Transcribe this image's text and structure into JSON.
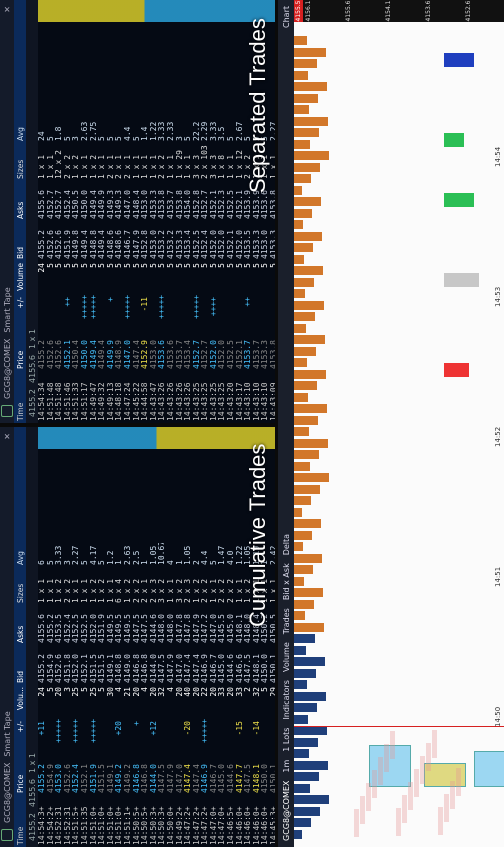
{
  "symbol": "GCG8@COMEX",
  "panel_title": "Smart Tape",
  "captions": {
    "cumulative": "Cumulative Trades",
    "separated": "Separated Trades"
  },
  "columns_cum": [
    "Time",
    "Price",
    "+/-",
    "Volu...",
    "Bid",
    "Asks",
    "Sizes",
    "Avg"
  ],
  "columns_sep": [
    "Time",
    "Price",
    "+/-",
    "Volume",
    "Bid",
    "Asks",
    "Sizes",
    "Avg"
  ],
  "header_quote_cum": {
    "bid": "4155.2",
    "ask": "4155.6",
    "sizes": "1 x 1"
  },
  "header_quote_sep": {
    "bid": "4155.2",
    "ask": "4155.6",
    "sizes": "1 x 1"
  },
  "cum_rows": [
    [
      "14:54:3+",
      "4155.2",
      "+11",
      "24",
      "4155.2",
      "4155.6",
      "1 x 1",
      "6"
    ],
    [
      "14:54:2+",
      "4154.9",
      "",
      "5",
      "4154.9",
      "4155.2",
      "1 x 1",
      "5"
    ],
    [
      "14:52:31",
      "4153.0",
      "++++++",
      "20",
      "4152.6",
      "4153.5",
      "1 x 2",
      "3.33"
    ],
    [
      "14:52:31",
      "4152.6",
      "",
      "3",
      "4151.8",
      "4152.4",
      "2 x 2",
      "3"
    ],
    [
      "14:51:5+",
      "4152.4",
      "++++++",
      "25",
      "4152.0",
      "4152.5",
      "1 x 1",
      "2.27"
    ],
    [
      "14:51:35",
      "4152.1",
      "",
      "5",
      "4152.1",
      "4152.5",
      "1 x 1",
      "5"
    ],
    [
      "14:51:0+",
      "4151.9",
      "++++++",
      "25",
      "4151.5",
      "4152.0",
      "1 x 2",
      "4.17"
    ],
    [
      "14:51:0+",
      "4151.5",
      "",
      "5",
      "4151.5",
      "4151.9",
      "1 x 2",
      "5"
    ],
    [
      "14:51:0+",
      "4149.1",
      "",
      "30",
      "4149.1",
      "4149.5",
      "1 x 1",
      "1.2"
    ],
    [
      "14:51:0+",
      "4149.2",
      "+20",
      "4",
      "4148.8",
      "4149.5",
      "6 x 4",
      "1"
    ],
    [
      "14:51:1+",
      "4149.2",
      "",
      "21",
      "4149.0",
      "4149.5",
      "1 x 2",
      "2.63"
    ],
    [
      "14:50:5+",
      "4146.8",
      "+",
      "20",
      "4146.8",
      "4147.5",
      "2 x 2",
      "2.5"
    ],
    [
      "14:50:5+",
      "4146.8",
      "",
      "4",
      "4146.8",
      "4147.5",
      "2 x 1",
      "1"
    ],
    [
      "14:50:3+",
      "4144.0",
      "+12",
      "20",
      "4144.0",
      "4144.6",
      "2 x 3",
      "1.05"
    ],
    [
      "14:50:3+",
      "4147.5",
      "",
      "32",
      "4147.5",
      "4148.0",
      "3 x 2",
      "10.67"
    ],
    [
      "14:50:0+",
      "4147.9",
      "",
      "4",
      "4147.9",
      "4148.0",
      "1 x 1",
      "4"
    ],
    [
      "14:49:2+",
      "4147.0",
      "",
      "20",
      "4147.0",
      "4147.8",
      "3 x 2",
      "1"
    ],
    [
      "14:47:2+",
      "4147.4",
      "-20",
      "40",
      "4147.4",
      "4147.8",
      "2 x 3",
      "1.05"
    ],
    [
      "14:47:2+",
      "4147.4",
      "",
      "20",
      "4147.4",
      "4147.9",
      "1 x 2",
      "2"
    ],
    [
      "14:47:2+",
      "4146.9",
      "++++++",
      "22",
      "4146.9",
      "4147.2",
      "2 x 2",
      "4.4"
    ],
    [
      "14:47:0+",
      "4146.7",
      "",
      "20",
      "4146.7",
      "4147.0",
      "1 x 1",
      "5"
    ],
    [
      "14:47:0+",
      "4145.0",
      "",
      "33",
      "4145.0",
      "4145.5",
      "2 x 2",
      "1.47"
    ],
    [
      "14:46:5+",
      "4144.6",
      "",
      "20",
      "4144.6",
      "4145.0",
      "2 x 2",
      "4.0"
    ],
    [
      "14:46:0+",
      "4147.7",
      "-15",
      "33",
      "4146.6",
      "4148.1",
      "1 x 1",
      "1.22"
    ],
    [
      "14:46:0+",
      "4147.5",
      "",
      "2",
      "4147.5",
      "4148.0",
      "1 x 2",
      "1.05"
    ],
    [
      "14:46:0+",
      "4148.1",
      "-14",
      "32",
      "4148.1",
      "4148.4",
      "1 x 1",
      "1.19"
    ],
    [
      "14:46:0+",
      "4150.0",
      "",
      "5",
      "4150.0",
      "4150.2",
      "1 x 1",
      "1"
    ],
    [
      "14:45:3+",
      "4150.1",
      "",
      "29",
      "4150.1",
      "4150.5",
      "1 x 1",
      "2.42"
    ],
    [
      "14:45:3+",
      "4149.4",
      "",
      "5",
      "4149.4",
      "4150.1",
      "1 x 1",
      "1"
    ],
    [
      "14:19:1+",
      "4173.4",
      "++",
      "22",
      "4173.2",
      "4173.4",
      "2 x 1",
      "11"
    ],
    [
      "14:19:1+",
      "4173.2",
      "",
      "22",
      "4173.2",
      "4173.5",
      "2 x 2",
      "1.27"
    ],
    [
      "14:10:5+",
      "4175.9",
      "+12",
      "42",
      "4175.6",
      "4177.0",
      "1 x 2",
      "1.27"
    ],
    [
      "14:10:5+",
      "4175.6",
      "",
      "10",
      "4175.6",
      "4176.3",
      "1 x 1",
      "2"
    ]
  ],
  "sep_rows": [
    [
      "14:54:34",
      "4155.2",
      "",
      "24",
      "4155.2",
      "4155.6",
      "1 x 1",
      "24"
    ],
    [
      "14:51:48",
      "4152.6",
      "",
      "5",
      "4152.6",
      "4152.7",
      "1 x 1",
      "5"
    ],
    [
      "14:51:48",
      "4152.6",
      "",
      "5",
      "4152.6",
      "4152.7",
      "12 x 2",
      "1.8"
    ],
    [
      "14:51:46",
      "4152.1",
      "++",
      "5",
      "4151.9",
      "4152.4",
      "2 x 2",
      "5"
    ],
    [
      "14:51:33",
      "4150.4",
      "",
      "5",
      "4149.8",
      "4150.5",
      "1 x 2",
      "3"
    ],
    [
      "14:51:17",
      "4150.0",
      "++++++",
      "5",
      "4149.4",
      "4150.0",
      "1 x 1",
      "2.63"
    ],
    [
      "14:49:47",
      "4149.4",
      "++++++",
      "5",
      "4148.8",
      "4149.4",
      "1 x 2",
      "2.75"
    ],
    [
      "14:49:32",
      "4149.4",
      "",
      "5",
      "4149.4",
      "4149.9",
      "1 x 1",
      "5"
    ],
    [
      "14:49:13",
      "4149.9",
      "+",
      "5",
      "4148.6",
      "4149.3",
      "2 x 1",
      "5"
    ],
    [
      "14:48:18",
      "4148.9",
      "",
      "5",
      "4148.6",
      "4149.3",
      "2 x 1",
      "5"
    ],
    [
      "14:47:24",
      "4147.0",
      "++++++",
      "5",
      "4146.7",
      "4147.0",
      "2 x 1",
      "4.4"
    ],
    [
      "14:45:22",
      "4147.4",
      "",
      "5",
      "4147.9",
      "4148.4",
      "1 x 1",
      "5"
    ],
    [
      "14:44:58",
      "4152.9",
      "-11",
      "5",
      "4152.8",
      "4153.0",
      "1 x 1",
      "1.4"
    ],
    [
      "14:43:47",
      "4153.0",
      "",
      "5",
      "4153.0",
      "4153.3",
      "1 x 1",
      "1.22"
    ],
    [
      "14:43:26",
      "4153.6",
      "+++++",
      "5",
      "4153.2",
      "4153.8",
      "2 x 2",
      "3.33"
    ],
    [
      "14:43:26",
      "4153.6",
      "",
      "5",
      "4153.2",
      "4153.7",
      "1 x 1",
      "2.33"
    ],
    [
      "14:43:26",
      "4153.7",
      "",
      "5",
      "4153.3",
      "4153.8",
      "1 x 29",
      "3"
    ],
    [
      "14:43:26",
      "4153.4",
      "",
      "5",
      "4153.4",
      "4154.0",
      "1 x 1",
      "5"
    ],
    [
      "14:43:25",
      "4152.7",
      "++++++",
      "5",
      "4152.5",
      "4152.8",
      "3 x 3",
      "22.2"
    ],
    [
      "14:43:25",
      "4152.7",
      "",
      "5",
      "4152.4",
      "4152.7",
      "2 x 103",
      "2.29"
    ],
    [
      "14:43:25",
      "4152.0",
      "++++",
      "5",
      "4152.0",
      "4152.1",
      "3 x 3",
      "3.33"
    ],
    [
      "14:43:25",
      "4152.0",
      "",
      "5",
      "4152.0",
      "4152.3",
      "1 x 8",
      "3.5"
    ],
    [
      "14:43:20",
      "4152.5",
      "",
      "5",
      "4152.1",
      "4152.5",
      "1 x 1",
      "5"
    ],
    [
      "14:43:17",
      "4152.1",
      "",
      "5",
      "4152.0",
      "4152.1",
      "1 x 12",
      "2.67"
    ],
    [
      "14:43:10",
      "4153.7",
      "++",
      "5",
      "4153.5",
      "4153.9",
      "2 x 2",
      "5"
    ],
    [
      "14:43:10",
      "4153.7",
      "",
      "5",
      "4153.3",
      "4153.9",
      "1 x 1",
      "5"
    ],
    [
      "14:43:10",
      "4153.3",
      "",
      "5",
      "4153.0",
      "4153.6",
      "1 x 1",
      "5"
    ],
    [
      "14:43:09",
      "4153.8",
      "",
      "5",
      "4153.3",
      "4153.8",
      "1 x 1",
      "2.27"
    ],
    [
      "14:42:25",
      "4160.8",
      "-12",
      "5",
      "4160.7",
      "4161.3",
      "2 x 2",
      "4.5"
    ],
    [
      "14:42:25",
      "4160.8",
      "++++++",
      "5",
      "4160.7",
      "4161.3",
      "4 x 3",
      "3"
    ],
    [
      "14:39:41",
      "4155.0",
      "",
      "5",
      "4155.0",
      "4155.6",
      "1 x 1",
      "5"
    ],
    [
      "14:39:41",
      "4160.9",
      "",
      "5",
      "4160.9",
      "4161.3",
      "1 x 1",
      "3"
    ],
    [
      "14:38:39",
      "4160.6",
      "",
      "5",
      "4160.6",
      "4160.8",
      "2 x 1",
      "1.4"
    ],
    [
      "14:36:02",
      "4157.9",
      "-29",
      "5",
      "4160.6",
      "4160.8",
      "1 x 1",
      "1.11"
    ],
    [
      "14:34:32",
      "4163.9",
      "-21",
      "5",
      "4160.3",
      "4160.6",
      "1 x 3",
      "1.19"
    ],
    [
      "14:33:44",
      "4162.6",
      "",
      "5",
      "4166.4",
      "4166.8",
      "2 x 1",
      "1"
    ],
    [
      "14:32:43",
      "4168.5",
      "+11",
      "5",
      "4168.5",
      "4168.8",
      "1 x 1",
      "1.12"
    ],
    [
      "14:31",
      "4168.5",
      "",
      "5",
      "4168.5",
      "4168.8",
      "1 x 1",
      "5"
    ],
    [
      "14:29",
      "4168.5",
      "",
      "5",
      "4168.5",
      "4168.8",
      "1 x 1",
      "5"
    ]
  ],
  "chart": {
    "title": "Chart",
    "toolbar": [
      "Volume",
      "Trades",
      "Bid x Ask",
      "Delta"
    ],
    "timeframe": "1m",
    "lots": "1 Lots",
    "indicators_label": "Indicators",
    "right_label": "DOM Traders",
    "times": [
      "14:50",
      "14:51",
      "14:52",
      "14:53",
      "14:54"
    ],
    "axis_prices": [
      "4156.1",
      "4155.6",
      "4154.1",
      "4153.6",
      "4152.6"
    ],
    "last_price": "4155.5",
    "last_price_color": "#d62020",
    "sell_color": "#1f3f7a",
    "buy_color": "#d2772a"
  }
}
